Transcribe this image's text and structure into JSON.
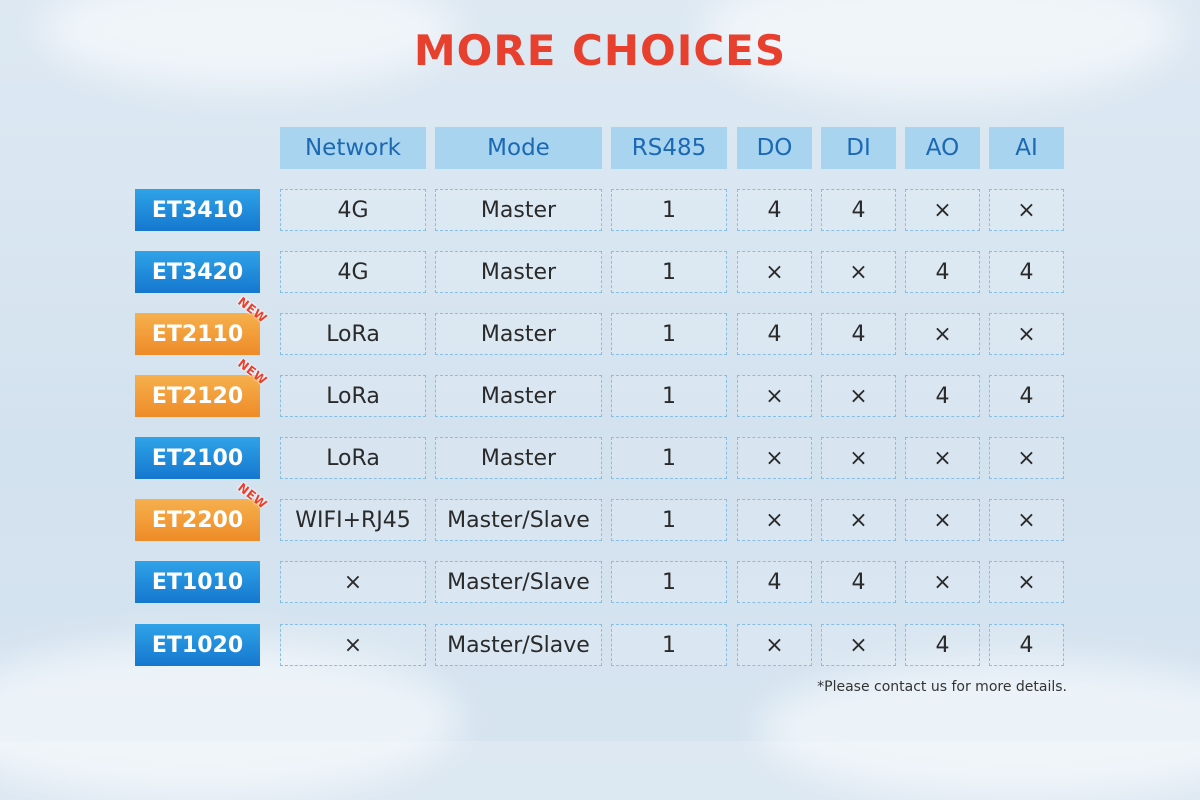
{
  "title": "MORE CHOICES",
  "columns": [
    "Network",
    "Mode",
    "RS485",
    "DO",
    "DI",
    "AO",
    "AI"
  ],
  "new_label": "NEW",
  "rows": [
    {
      "model": "ET3410",
      "color": "blue",
      "is_new": false,
      "values": [
        "4G",
        "Master",
        "1",
        "4",
        "4",
        "×",
        "×"
      ]
    },
    {
      "model": "ET3420",
      "color": "blue",
      "is_new": false,
      "values": [
        "4G",
        "Master",
        "1",
        "×",
        "×",
        "4",
        "4"
      ]
    },
    {
      "model": "ET2110",
      "color": "orange",
      "is_new": true,
      "values": [
        "LoRa",
        "Master",
        "1",
        "4",
        "4",
        "×",
        "×"
      ]
    },
    {
      "model": "ET2120",
      "color": "orange",
      "is_new": true,
      "values": [
        "LoRa",
        "Master",
        "1",
        "×",
        "×",
        "4",
        "4"
      ]
    },
    {
      "model": "ET2100",
      "color": "blue",
      "is_new": false,
      "values": [
        "LoRa",
        "Master",
        "1",
        "×",
        "×",
        "×",
        "×"
      ]
    },
    {
      "model": "ET2200",
      "color": "orange",
      "is_new": true,
      "values": [
        "WIFI+RJ45",
        "Master/Slave",
        "1",
        "×",
        "×",
        "×",
        "×"
      ]
    },
    {
      "model": "ET1010",
      "color": "blue",
      "is_new": false,
      "values": [
        "×",
        "Master/Slave",
        "1",
        "4",
        "4",
        "×",
        "×"
      ]
    },
    {
      "model": "ET1020",
      "color": "blue",
      "is_new": false,
      "values": [
        "×",
        "Master/Slave",
        "1",
        "×",
        "×",
        "4",
        "4"
      ]
    }
  ],
  "footnote": "*Please contact us for more details.",
  "colors": {
    "title": "#e8402f",
    "header_bg": "#a9d4f0",
    "header_text": "#1b68b3",
    "model_blue": "#1f8ad9",
    "model_orange": "#f19a34"
  }
}
